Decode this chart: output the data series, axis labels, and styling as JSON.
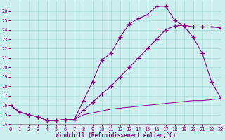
{
  "xlabel": "Windchill (Refroidissement éolien,°C)",
  "xlim": [
    0,
    23
  ],
  "ylim": [
    14,
    27
  ],
  "xticks": [
    0,
    1,
    2,
    3,
    4,
    5,
    6,
    7,
    8,
    9,
    10,
    11,
    12,
    13,
    14,
    15,
    16,
    17,
    18,
    19,
    20,
    21,
    22,
    23
  ],
  "yticks": [
    14,
    15,
    16,
    17,
    18,
    19,
    20,
    21,
    22,
    23,
    24,
    25,
    26
  ],
  "background_color": "#cceeed",
  "grid_color": "#aadddb",
  "line_color": "#880088",
  "curve_peak_x": [
    0,
    1,
    2,
    3,
    4,
    5,
    6,
    7,
    8,
    9,
    10,
    11,
    12,
    13,
    14,
    15,
    16,
    17,
    18,
    19,
    20,
    21,
    22,
    23
  ],
  "curve_peak_y": [
    16.0,
    15.3,
    15.0,
    14.8,
    14.4,
    14.4,
    14.5,
    14.5,
    16.5,
    18.5,
    20.8,
    21.5,
    23.2,
    24.6,
    25.2,
    25.6,
    26.5,
    26.5,
    25.0,
    24.4,
    23.2,
    21.5,
    18.5,
    16.8
  ],
  "curve_diag_x": [
    0,
    1,
    2,
    3,
    4,
    5,
    6,
    7,
    8,
    9,
    10,
    11,
    12,
    13,
    14,
    15,
    16,
    17,
    18,
    19,
    20,
    21,
    22,
    23
  ],
  "curve_diag_y": [
    16.0,
    15.3,
    15.0,
    14.8,
    14.4,
    14.4,
    14.5,
    14.5,
    15.5,
    16.3,
    17.2,
    18.0,
    19.0,
    20.0,
    21.0,
    22.0,
    23.0,
    24.0,
    24.4,
    24.5,
    24.3,
    24.3,
    24.3,
    24.2
  ],
  "curve_flat_x": [
    0,
    1,
    2,
    3,
    4,
    5,
    6,
    7,
    8,
    9,
    10,
    11,
    12,
    13,
    14,
    15,
    16,
    17,
    18,
    19,
    20,
    21,
    22,
    23
  ],
  "curve_flat_y": [
    16.0,
    15.3,
    15.0,
    14.8,
    14.4,
    14.4,
    14.5,
    14.5,
    15.0,
    15.2,
    15.4,
    15.6,
    15.7,
    15.8,
    15.9,
    16.0,
    16.1,
    16.2,
    16.3,
    16.4,
    16.5,
    16.5,
    16.6,
    16.7
  ]
}
